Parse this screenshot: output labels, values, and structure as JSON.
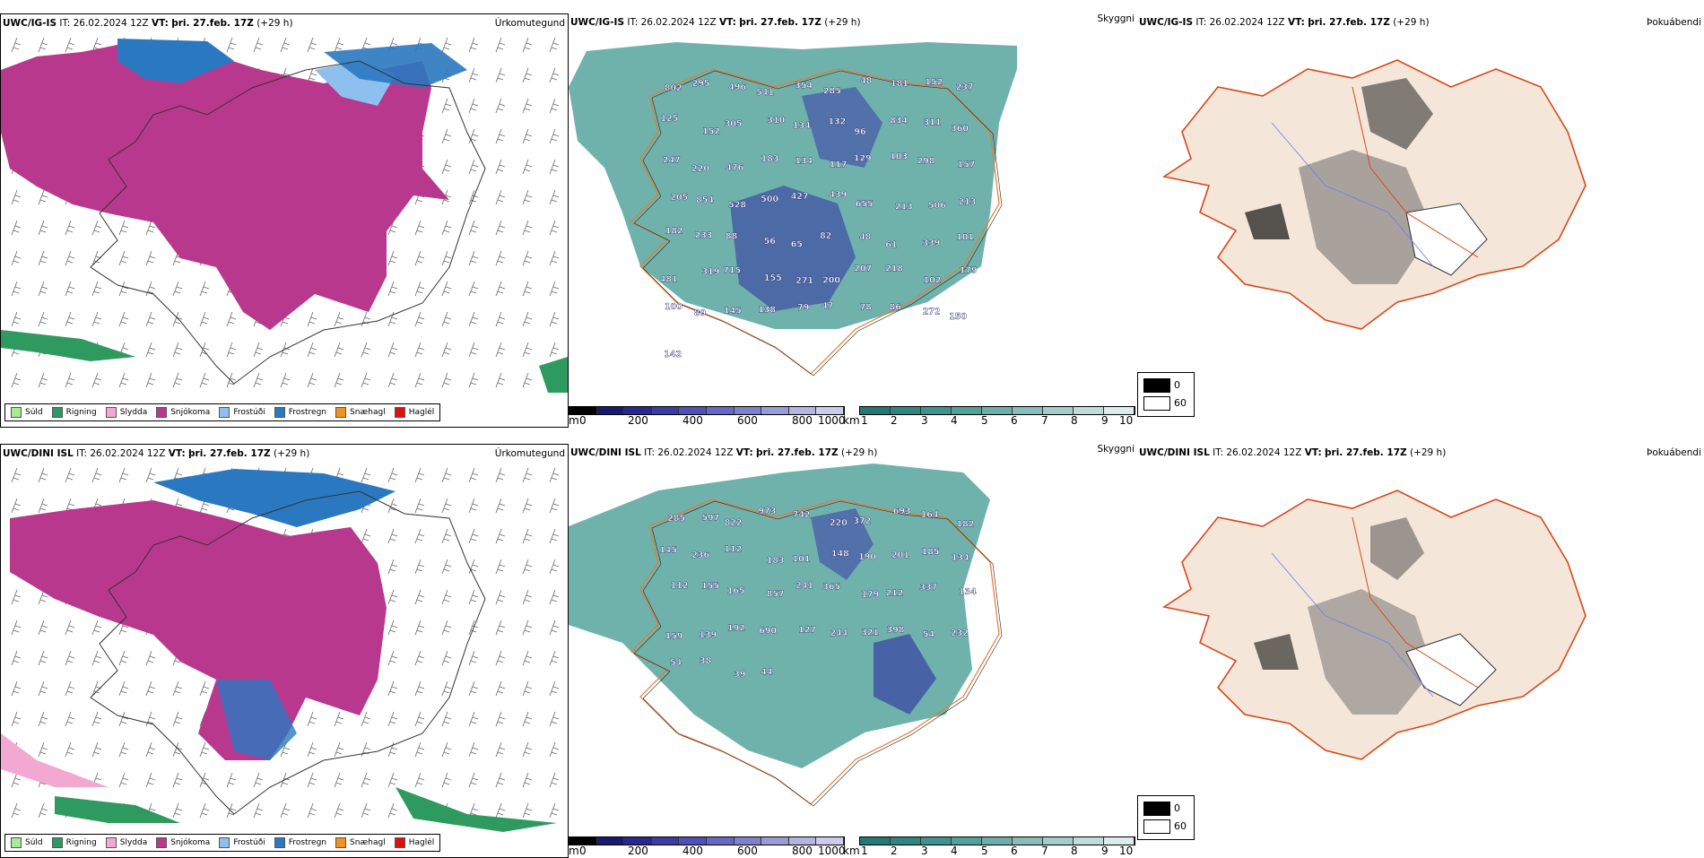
{
  "rows": [
    {
      "model": "UWC/IG-IS",
      "it_label": "IT:",
      "it_value": "26.02.2024 12Z",
      "vt_label": "VT:",
      "vt_value": "þri. 27.feb. 17Z",
      "lead": "(+29 h)",
      "panels": {
        "precip": "Úrkomutegund",
        "visibility": "Skyggni",
        "fog": "Þokuábendi"
      },
      "labels": [
        "802",
        "295",
        "496",
        "541",
        "354",
        "285",
        "48",
        "181",
        "152",
        "237",
        "125",
        "152",
        "305",
        "310",
        "134",
        "132",
        "96",
        "834",
        "311",
        "360",
        "247",
        "220",
        "476",
        "183",
        "134",
        "117",
        "129",
        "103",
        "298",
        "157",
        "205",
        "854",
        "528",
        "500",
        "427",
        "439",
        "655",
        "213",
        "506",
        "213",
        "182",
        "233",
        "88",
        "56",
        "65",
        "82",
        "48",
        "61",
        "339",
        "101",
        "481",
        "319",
        "715",
        "155",
        "271",
        "200",
        "207",
        "218",
        "102",
        "179",
        "100",
        "89",
        "145",
        "138",
        "79",
        "47",
        "78",
        "86",
        "272",
        "150",
        "142"
      ]
    },
    {
      "model": "UWC/DINI ISL",
      "it_label": "IT:",
      "it_value": "26.02.2024 12Z",
      "vt_label": "VT:",
      "vt_value": "þri. 27.feb. 17Z",
      "lead": "(+29 h)",
      "panels": {
        "precip": "Úrkomutegund",
        "visibility": "Skyggni",
        "fog": "Þokuábendi"
      },
      "labels": [
        "285",
        "597",
        "822",
        "973",
        "742",
        "220",
        "372",
        "693",
        "164",
        "182",
        "145",
        "236",
        "112",
        "183",
        "101",
        "148",
        "190",
        "201",
        "185",
        "134",
        "112",
        "155",
        "165",
        "857",
        "241",
        "365",
        "179",
        "212",
        "337",
        "134",
        "159",
        "139",
        "192",
        "690",
        "127",
        "244",
        "321",
        "398",
        "54",
        "232",
        "54",
        "38",
        "39",
        "44"
      ]
    }
  ],
  "precip_legend": [
    {
      "label": "Súld",
      "color": "#a4ec95"
    },
    {
      "label": "Rigning",
      "color": "#2f9a5f"
    },
    {
      "label": "Slydda",
      "color": "#f2a8d0"
    },
    {
      "label": "Snjókoma",
      "color": "#b8388e"
    },
    {
      "label": "Frostúði",
      "color": "#8ec0ef"
    },
    {
      "label": "Frostregn",
      "color": "#2a78c0"
    },
    {
      "label": "Snæhagl",
      "color": "#f09220"
    },
    {
      "label": "Haglél",
      "color": "#e01010"
    }
  ],
  "colorbar_m": {
    "unit": "m",
    "ticks": [
      "0",
      "200",
      "400",
      "600",
      "800",
      "1000"
    ],
    "colors": [
      "#000000",
      "#191970",
      "#28288f",
      "#3c3ca8",
      "#5050b8",
      "#6868c4",
      "#8080cc",
      "#9a9ad6",
      "#b4b4e0",
      "#ccccea"
    ]
  },
  "colorbar_km": {
    "unit": "km",
    "ticks": [
      "1",
      "2",
      "3",
      "4",
      "5",
      "6",
      "7",
      "8",
      "9",
      "10"
    ],
    "colors": [
      "#227a72",
      "#2f8680",
      "#40928c",
      "#56a09a",
      "#6eaea8",
      "#88bcb8",
      "#a4ccc8",
      "#c0dcd8",
      "#dceceb"
    ]
  },
  "fog_key": [
    {
      "label": "0",
      "color": "#000000"
    },
    {
      "label": "60",
      "color": "#ffffff"
    }
  ]
}
